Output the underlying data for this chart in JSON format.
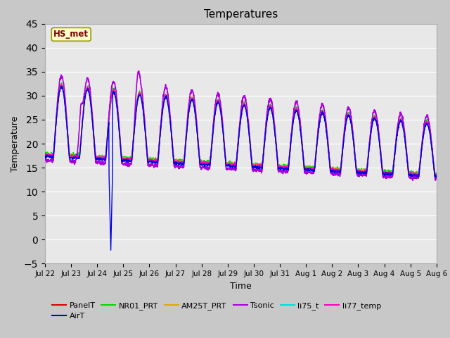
{
  "title": "Temperatures",
  "xlabel": "Time",
  "ylabel": "Temperature",
  "ylim": [
    -5,
    45
  ],
  "yticks": [
    -5,
    0,
    5,
    10,
    15,
    20,
    25,
    30,
    35,
    40,
    45
  ],
  "fig_bg": "#c8c8c8",
  "plot_bg": "#e8e8e8",
  "annotation_label": "HS_met",
  "annotation_color": "#800000",
  "annotation_bg": "#ffffcc",
  "annotation_border": "#999900",
  "series": {
    "PanelT": {
      "color": "#dd0000",
      "lw": 1.0
    },
    "AirT": {
      "color": "#0000dd",
      "lw": 1.0
    },
    "NR01_PRT": {
      "color": "#00dd00",
      "lw": 1.0
    },
    "AM25T_PRT": {
      "color": "#ddaa00",
      "lw": 1.0
    },
    "Tsonic": {
      "color": "#aa00dd",
      "lw": 1.2
    },
    "li75_t": {
      "color": "#00dddd",
      "lw": 1.0
    },
    "li77_temp": {
      "color": "#ff00bb",
      "lw": 1.0
    }
  },
  "tick_labels": [
    "Jul 22",
    "Jul 23",
    "Jul 24",
    "Jul 25",
    "Jul 26",
    "Jul 27",
    "Jul 28",
    "Jul 29",
    "Jul 30",
    "Jul 31",
    "Aug 1",
    "Aug 2",
    "Aug 3",
    "Aug 4",
    "Aug 5",
    "Aug 6"
  ],
  "legend_order": [
    "PanelT",
    "AirT",
    "NR01_PRT",
    "AM25T_PRT",
    "Tsonic",
    "li75_t",
    "li77_temp"
  ]
}
